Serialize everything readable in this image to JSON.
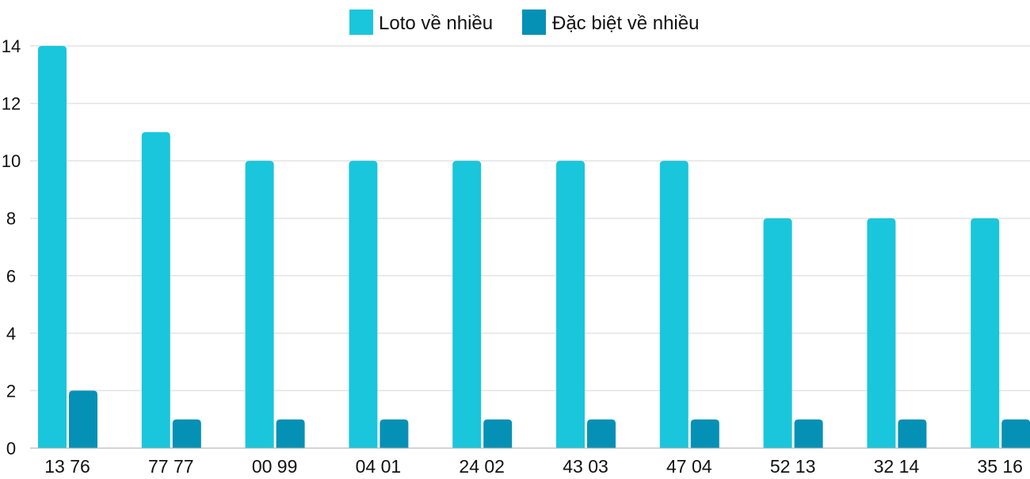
{
  "chart_data": {
    "type": "bar",
    "title": "",
    "xlabel": "",
    "ylabel": "",
    "categories": [
      "13 76",
      "77 77",
      "00 99",
      "04 01",
      "24 02",
      "43 03",
      "47 04",
      "52 13",
      "32 14",
      "35 16"
    ],
    "series": [
      {
        "name": "Loto về nhiều",
        "color": "#1ac6db",
        "values": [
          14,
          11,
          10,
          10,
          10,
          10,
          10,
          8,
          8,
          8
        ]
      },
      {
        "name": "Đặc biệt về nhiều",
        "color": "#0591b5",
        "values": [
          2,
          1,
          1,
          1,
          1,
          1,
          1,
          1,
          1,
          1
        ]
      }
    ],
    "ylim": [
      0,
      14
    ],
    "yticks": [
      0,
      2,
      4,
      6,
      8,
      10,
      12,
      14
    ],
    "grid": true,
    "legend": "top-center"
  }
}
